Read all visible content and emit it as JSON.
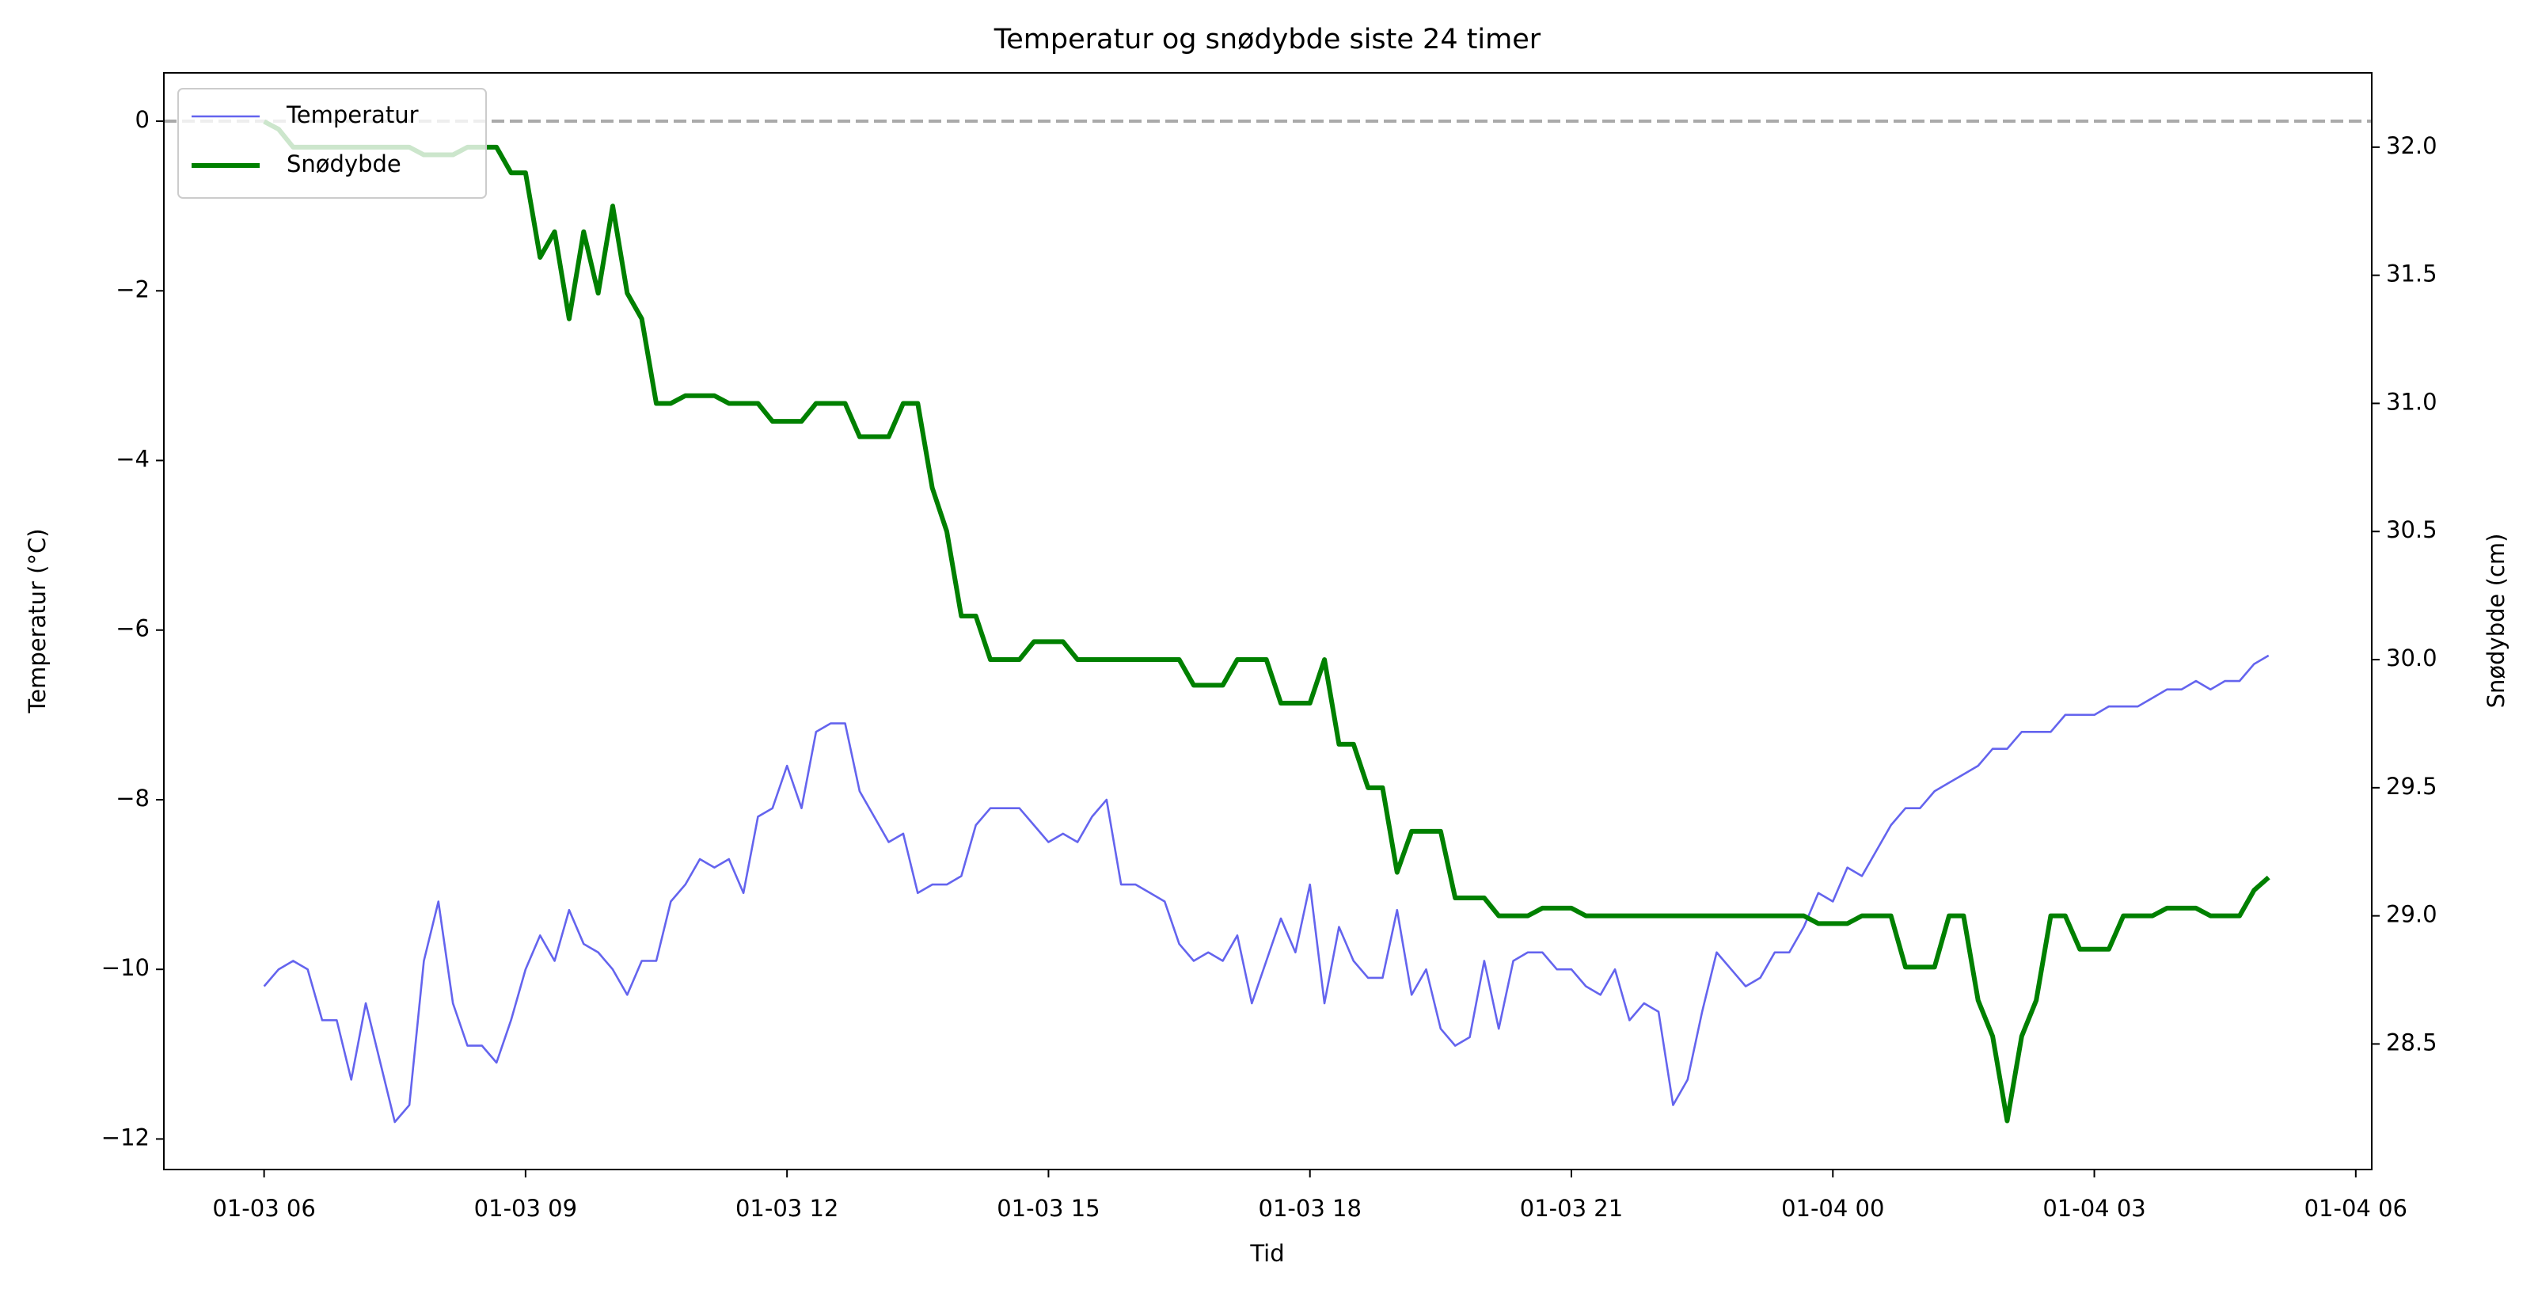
{
  "chart_data": {
    "type": "line",
    "title": "Temperatur og snødybde siste 24 timer",
    "xlabel": "Tid",
    "ylabel": "Temperatur (°C)",
    "y2label": "Snødybde (cm)",
    "ylabel_color": "#0000ff",
    "y2label_color": "#008000",
    "legend": "upper left",
    "reference_line": {
      "y": 0,
      "color": "#aaaaaa",
      "dashed": true
    },
    "x": [
      360,
      370,
      380,
      390,
      400,
      410,
      420,
      430,
      440,
      450,
      460,
      470,
      480,
      490,
      500,
      510,
      520,
      530,
      540,
      550,
      560,
      570,
      580,
      590,
      600,
      610,
      620,
      630,
      640,
      650,
      660,
      670,
      680,
      690,
      700,
      710,
      720,
      730,
      740,
      750,
      760,
      770,
      780,
      790,
      800,
      810,
      820,
      830,
      840,
      850,
      860,
      870,
      880,
      890,
      900,
      910,
      920,
      930,
      940,
      950,
      960,
      970,
      980,
      990,
      1000,
      1010,
      1020,
      1030,
      1040,
      1050,
      1060,
      1070,
      1080,
      1090,
      1100,
      1110,
      1120,
      1130,
      1140,
      1150,
      1160,
      1170,
      1180,
      1190,
      1200,
      1210,
      1220,
      1230,
      1240,
      1250,
      1260,
      1270,
      1280,
      1290,
      1300,
      1310,
      1320,
      1330,
      1340,
      1350,
      1360,
      1370,
      1380,
      1390,
      1400,
      1410,
      1420,
      1430,
      1440,
      1450,
      1460,
      1470,
      1480,
      1490,
      1500,
      1510,
      1520,
      1530,
      1540,
      1550,
      1560,
      1570,
      1580,
      1590,
      1600,
      1610,
      1620,
      1630,
      1640,
      1650,
      1660,
      1670,
      1680,
      1690,
      1700,
      1710,
      1720,
      1730,
      1740
    ],
    "series": [
      {
        "name": "Temperatur",
        "color": "#6464ee",
        "width": 2.6,
        "values": [
          -10.2,
          -10.0,
          -9.9,
          -10.0,
          -10.6,
          -10.6,
          -11.3,
          -10.4,
          -11.1,
          -11.8,
          -11.6,
          -9.9,
          -9.2,
          -10.4,
          -10.9,
          -10.9,
          -11.1,
          -10.6,
          -10.0,
          -9.6,
          -9.9,
          -9.3,
          -9.7,
          -9.8,
          -10.0,
          -10.3,
          -9.9,
          -9.9,
          -9.2,
          -9.0,
          -8.7,
          -8.8,
          -8.7,
          -9.1,
          -8.2,
          -8.1,
          -7.6,
          -8.1,
          -7.2,
          -7.1,
          -7.1,
          -7.9,
          -8.2,
          -8.5,
          -8.4,
          -9.1,
          -9.0,
          -9.0,
          -8.9,
          -8.3,
          -8.1,
          -8.1,
          -8.1,
          -8.3,
          -8.5,
          -8.4,
          -8.5,
          -8.2,
          -8.0,
          -9.0,
          -9.0,
          -9.1,
          -9.2,
          -9.7,
          -9.9,
          -9.8,
          -9.9,
          -9.6,
          -10.4,
          -9.9,
          -9.4,
          -9.8,
          -9.0,
          -10.4,
          -9.5,
          -9.9,
          -10.1,
          -10.1,
          -9.3,
          -10.3,
          -10.0,
          -10.7,
          -10.9,
          -10.8,
          -9.9,
          -10.7,
          -9.9,
          -9.8,
          -9.8,
          -10.0,
          -10.0,
          -10.2,
          -10.3,
          -10.0,
          -10.6,
          -10.4,
          -10.5,
          -11.6,
          -11.3,
          -10.5,
          -9.8,
          -10.0,
          -10.2,
          -10.1,
          -9.8,
          -9.8,
          -9.5,
          -9.1,
          -9.2,
          -8.8,
          -8.9,
          -8.6,
          -8.3,
          -8.1,
          -8.1,
          -7.9,
          -7.8,
          -7.7,
          -7.6,
          -7.4,
          -7.4,
          -7.2,
          -7.2,
          -7.2,
          -7.0,
          -7.0,
          -7.0,
          -6.9,
          -6.9,
          -6.9,
          -6.8,
          -6.7,
          -6.7,
          -6.6,
          -6.7,
          -6.6,
          -6.6,
          -6.4,
          -6.3
        ]
      },
      {
        "name": "Snødybde",
        "color": "#008000",
        "width": 6,
        "axis": "y2",
        "values": [
          32.1,
          32.07,
          32.0,
          32.0,
          32.0,
          32.0,
          32.0,
          32.0,
          32.0,
          32.0,
          32.0,
          31.97,
          31.97,
          31.97,
          32.0,
          32.0,
          32.0,
          31.9,
          31.9,
          31.57,
          31.67,
          31.33,
          31.67,
          31.43,
          31.77,
          31.43,
          31.33,
          31.0,
          31.0,
          31.03,
          31.03,
          31.03,
          31.0,
          31.0,
          31.0,
          30.93,
          30.93,
          30.93,
          31.0,
          31.0,
          31.0,
          30.87,
          30.87,
          30.87,
          31.0,
          31.0,
          30.67,
          30.5,
          30.17,
          30.17,
          30.0,
          30.0,
          30.0,
          30.07,
          30.07,
          30.07,
          30.0,
          30.0,
          30.0,
          30.0,
          30.0,
          30.0,
          30.0,
          30.0,
          29.9,
          29.9,
          29.9,
          30.0,
          30.0,
          30.0,
          29.83,
          29.83,
          29.83,
          30.0,
          29.67,
          29.67,
          29.5,
          29.5,
          29.17,
          29.33,
          29.33,
          29.33,
          29.07,
          29.07,
          29.07,
          29.0,
          29.0,
          29.0,
          29.03,
          29.03,
          29.03,
          29.0,
          29.0,
          29.0,
          29.0,
          29.0,
          29.0,
          29.0,
          29.0,
          29.0,
          29.0,
          29.0,
          29.0,
          29.0,
          29.0,
          29.0,
          29.0,
          28.97,
          28.97,
          28.97,
          29.0,
          29.0,
          29.0,
          28.8,
          28.8,
          28.8,
          29.0,
          29.0,
          28.67,
          28.53,
          28.2,
          28.53,
          28.67,
          29.0,
          29.0,
          28.87,
          28.87,
          28.87,
          29.0,
          29.0,
          29.0,
          29.03,
          29.03,
          29.03,
          29.0,
          29.0,
          29.0,
          29.1,
          29.15
        ]
      }
    ],
    "xlim": [
      291,
      1811
    ],
    "xticks": [
      {
        "value": 360,
        "label": "01-03 06"
      },
      {
        "value": 540,
        "label": "01-03 09"
      },
      {
        "value": 720,
        "label": "01-03 12"
      },
      {
        "value": 900,
        "label": "01-03 15"
      },
      {
        "value": 1080,
        "label": "01-03 18"
      },
      {
        "value": 1260,
        "label": "01-03 21"
      },
      {
        "value": 1440,
        "label": "01-04 00"
      },
      {
        "value": 1620,
        "label": "01-04 03"
      },
      {
        "value": 1800,
        "label": "01-04 06"
      }
    ],
    "ylim": [
      -12.36,
      0.57
    ],
    "yticks": [
      {
        "value": -12,
        "label": "−12"
      },
      {
        "value": -10,
        "label": "−10"
      },
      {
        "value": -8,
        "label": "−8"
      },
      {
        "value": -6,
        "label": "−6"
      },
      {
        "value": -4,
        "label": "−4"
      },
      {
        "value": -2,
        "label": "−2"
      },
      0
    ],
    "y2lim": [
      28.01,
      32.29
    ],
    "y2ticks": [
      28.5,
      {
        "value": 29,
        "label": "29.0"
      },
      29.5,
      {
        "value": 30,
        "label": "30.0"
      },
      30.5,
      {
        "value": 31,
        "label": "31.0"
      },
      31.5,
      {
        "value": 32,
        "label": "32.0"
      }
    ]
  }
}
